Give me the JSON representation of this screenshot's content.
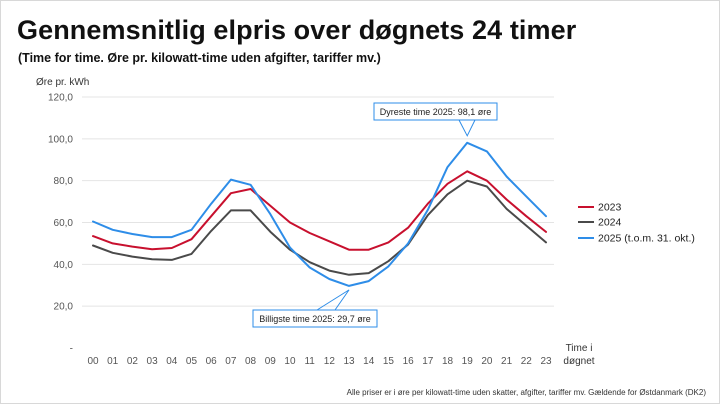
{
  "header": {
    "title": "Gennemsnitlig elpris over døgnets 24 timer",
    "subtitle": "(Time for time. Øre pr. kilowatt-time uden afgifter, tariffer mv.)"
  },
  "footnote": "Alle priser er i øre per kilowatt-time uden skatter, afgifter, tariffer mv. Gældende for Østdanmark (DK2)",
  "chart_data": {
    "type": "line",
    "title": "Gennemsnitlig elpris over døgnets 24 timer",
    "subtitle": "(Time for time. Øre pr. kilowatt-time uden afgifter, tariffer mv.)",
    "ylabel": "Øre pr. kWh",
    "xlabel_line1": "Time i",
    "xlabel_line2": "døgnet",
    "x": [
      "00",
      "01",
      "02",
      "03",
      "04",
      "05",
      "06",
      "07",
      "08",
      "09",
      "10",
      "11",
      "12",
      "13",
      "14",
      "15",
      "16",
      "17",
      "18",
      "19",
      "20",
      "21",
      "22",
      "23"
    ],
    "ylim": [
      0,
      120
    ],
    "yticks": [
      {
        "value": 0,
        "label": "-"
      },
      {
        "value": 20,
        "label": "20,0"
      },
      {
        "value": 40,
        "label": "40,0"
      },
      {
        "value": 60,
        "label": "60,0"
      },
      {
        "value": 80,
        "label": "80,0"
      },
      {
        "value": 100,
        "label": "100,0"
      },
      {
        "value": 120,
        "label": "120,0"
      }
    ],
    "grid": true,
    "legend_position": "right",
    "series": [
      {
        "name": "2023",
        "color": "#c8102e",
        "values": [
          53.5,
          50,
          48.5,
          47.2,
          47.8,
          52,
          63,
          74,
          76,
          68,
          60,
          55,
          51,
          47,
          47,
          50.5,
          57.5,
          69,
          78.5,
          84.5,
          80,
          71,
          63,
          55.5
        ]
      },
      {
        "name": "2024",
        "color": "#4a4a4a",
        "values": [
          49,
          45.5,
          43.7,
          42.4,
          42.1,
          45,
          56,
          65.8,
          65.8,
          55.6,
          47,
          41,
          37,
          35,
          35.8,
          41.5,
          49.5,
          63.5,
          73.5,
          80,
          77.2,
          66.5,
          58.5,
          50.5
        ]
      },
      {
        "name": "2025 (t.o.m. 31. okt.)",
        "color": "#2e8de8",
        "values": [
          60.5,
          56.5,
          54.5,
          53,
          53,
          56.5,
          69,
          80.5,
          78,
          64,
          48,
          38.5,
          33,
          29.7,
          32,
          39,
          50,
          66,
          86.5,
          98.1,
          94,
          82,
          72.5,
          63
        ]
      }
    ],
    "annotations": [
      {
        "text": "Dyreste time 2025: 98,1 øre",
        "x": "19",
        "y": 98.1
      },
      {
        "text": "Billigste time 2025: 29,7 øre",
        "x": "13",
        "y": 29.7
      }
    ]
  }
}
